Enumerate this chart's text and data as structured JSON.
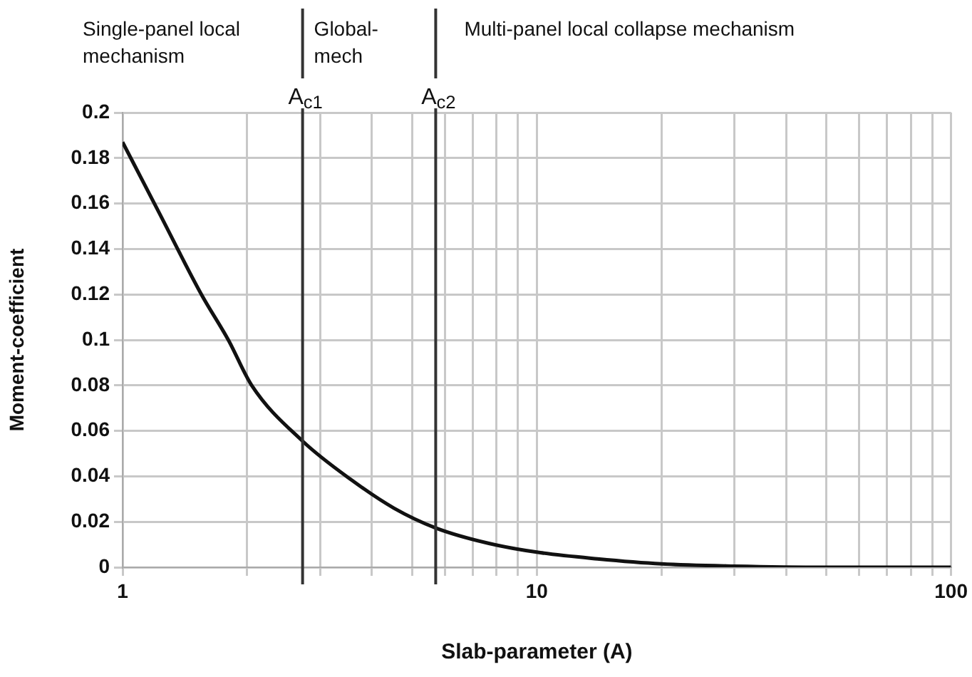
{
  "chart_data": {
    "type": "line",
    "xlabel": "Slab-parameter (A)",
    "ylabel": "Moment-coefficient",
    "x": [
      1,
      1.225,
      1.55,
      1.8,
      2.05,
      2.72,
      3.57,
      4.52,
      5.7,
      7.66,
      10.2,
      14,
      20,
      30,
      50,
      100
    ],
    "series": [
      {
        "color": "#111111",
        "values": [
          0.187,
          0.156,
          0.12,
          0.1,
          0.08,
          0.0555,
          0.0384,
          0.026,
          0.0173,
          0.0105,
          0.0064,
          0.0037,
          0.0015,
          0.0005,
          0,
          0
        ]
      }
    ],
    "log": "x",
    "xlim": [
      1,
      100
    ],
    "xticks": [
      1,
      {
        "value": 2,
        "label": null
      },
      {
        "value": 3,
        "label": null
      },
      {
        "value": 4,
        "label": null
      },
      {
        "value": 5,
        "label": null
      },
      {
        "value": 6,
        "label": null
      },
      {
        "value": 7,
        "label": null
      },
      {
        "value": 8,
        "label": null
      },
      {
        "value": 9,
        "label": null
      },
      10,
      {
        "value": 20,
        "label": null
      },
      {
        "value": 30,
        "label": null
      },
      {
        "value": 40,
        "label": null
      },
      {
        "value": 50,
        "label": null
      },
      {
        "value": 60,
        "label": null
      },
      {
        "value": 70,
        "label": null
      },
      {
        "value": 80,
        "label": null
      },
      {
        "value": 90,
        "label": null
      },
      100
    ],
    "ylim": [
      0,
      0.2
    ],
    "yticks": [
      0,
      0.02,
      0.04,
      0.06,
      0.08,
      0.1,
      0.12,
      0.14,
      0.16,
      0.18,
      0.2
    ],
    "grid": true,
    "marker": "none",
    "line_style": "solid",
    "legend": false,
    "ref_lines": [
      {
        "axis": "x",
        "value": 2.72,
        "label": "A$_{c1}$",
        "color": "#333333"
      },
      {
        "axis": "x",
        "value": 5.7,
        "label": "A$_{c2}$",
        "color": "#333333"
      }
    ],
    "annotations": [
      "Single-panel local mechanism",
      "Global-mech",
      "Multi-panel local collapse mechanism"
    ]
  }
}
